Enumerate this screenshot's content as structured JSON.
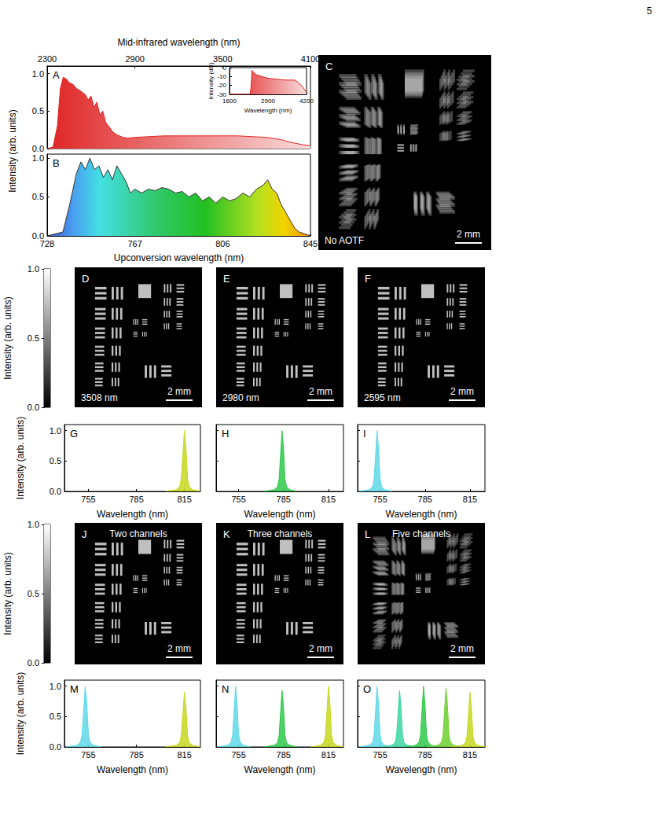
{
  "page_number": "5",
  "chart_data": [
    {
      "panel": "A",
      "type": "area",
      "color": "#e02424",
      "xlabel": "Mid-infrared wavelength (nm)",
      "ylabel": "Intensity (arb. units)",
      "x": [
        2300,
        2340,
        2370,
        2390,
        2410,
        2430,
        2450,
        2480,
        2500,
        2520,
        2540,
        2560,
        2580,
        2600,
        2620,
        2640,
        2660,
        2680,
        2700,
        2720,
        2750,
        2780,
        2820,
        2850,
        2900,
        3000,
        3100,
        3200,
        3300,
        3400,
        3500,
        3600,
        3700,
        3800,
        3900,
        3950,
        4000,
        4050,
        4100
      ],
      "values": [
        0,
        0.02,
        0.3,
        0.8,
        0.95,
        0.93,
        0.88,
        0.85,
        0.8,
        0.78,
        0.75,
        0.72,
        0.65,
        0.7,
        0.55,
        0.62,
        0.45,
        0.5,
        0.35,
        0.3,
        0.22,
        0.18,
        0.15,
        0.14,
        0.15,
        0.16,
        0.17,
        0.17,
        0.17,
        0.17,
        0.17,
        0.17,
        0.16,
        0.15,
        0.12,
        0.09,
        0.07,
        0.05,
        0.04
      ],
      "xlim": [
        2300,
        4100
      ],
      "xticks": [
        2300,
        2900,
        3500,
        4100
      ],
      "ylim": [
        0,
        1.1
      ],
      "yticks": [
        {
          "value": 0,
          "label": "0.0"
        },
        {
          "value": 0.5,
          "label": "0.5"
        },
        {
          "value": 1,
          "label": "1.0"
        }
      ],
      "inset": {
        "type": "area",
        "color": "#e02424",
        "xlabel": "Wavelength (nm)",
        "ylabel": "Intensity (dB)",
        "x": [
          1600,
          2300,
          2330,
          2360,
          2400,
          2500,
          2700,
          2900,
          3200,
          3500,
          3800,
          3900,
          4000,
          4100,
          4200
        ],
        "values": [
          -30,
          -30,
          -20,
          -3,
          -5,
          -8,
          -10,
          -12,
          -13,
          -14,
          -14,
          -16,
          -19,
          -23,
          -28
        ],
        "xlim": [
          1600,
          4200
        ],
        "xticks": [
          1600,
          2900,
          4200
        ],
        "ylim": [
          -30,
          0
        ],
        "yticks": [
          0,
          -10,
          -20,
          -30
        ]
      }
    },
    {
      "panel": "B",
      "type": "spectrum",
      "color": "#333333",
      "xlabel": "Upconversion wavelength (nm)",
      "x": [
        728,
        735,
        738,
        741,
        743,
        745,
        747,
        749,
        751,
        753,
        755,
        757,
        759,
        761,
        763,
        765,
        767,
        770,
        773,
        776,
        779,
        782,
        785,
        788,
        791,
        794,
        797,
        800,
        803,
        806,
        809,
        812,
        815,
        818,
        821,
        824,
        826,
        828,
        830,
        832,
        834,
        836,
        838,
        840,
        845
      ],
      "values": [
        0,
        0.05,
        0.4,
        0.8,
        0.95,
        0.85,
        1.0,
        0.85,
        0.9,
        0.75,
        0.85,
        0.72,
        0.9,
        0.8,
        0.7,
        0.55,
        0.6,
        0.55,
        0.6,
        0.58,
        0.62,
        0.6,
        0.55,
        0.57,
        0.5,
        0.55,
        0.45,
        0.5,
        0.42,
        0.5,
        0.45,
        0.48,
        0.55,
        0.5,
        0.6,
        0.65,
        0.72,
        0.6,
        0.55,
        0.4,
        0.3,
        0.2,
        0.1,
        0.05,
        0
      ],
      "xlim": [
        728,
        845
      ],
      "xticks": [
        728,
        767,
        806,
        845
      ],
      "ylim": [
        0,
        1.05
      ],
      "yticks": [
        {
          "value": 0,
          "label": "0.0"
        },
        {
          "value": 0.5,
          "label": "0.5"
        },
        {
          "value": 1,
          "label": "1.0"
        }
      ]
    },
    {
      "panel": "G",
      "type": "area",
      "xlabel": "Wavelength (nm)",
      "ylabel": "Intensity (arb. units)",
      "series": [
        {
          "color": "#c6d820",
          "x": [
            803,
            810,
            812,
            813,
            814,
            815,
            816,
            817,
            818,
            820,
            825
          ],
          "values": [
            0,
            0.03,
            0.08,
            0.2,
            0.6,
            1.0,
            0.7,
            0.2,
            0.08,
            0.03,
            0
          ]
        }
      ],
      "xlim": [
        740,
        825
      ],
      "xticks": [
        755,
        785,
        815
      ],
      "ylim": [
        0,
        1.1
      ],
      "yticks": [
        {
          "value": 0,
          "label": "0.0"
        },
        {
          "value": 0.5,
          "label": "0.5"
        },
        {
          "value": 1,
          "label": "1.0"
        }
      ]
    },
    {
      "panel": "H",
      "type": "area",
      "xlabel": "Wavelength (nm)",
      "tick_labels": "x",
      "series": [
        {
          "color": "#2ec84a",
          "x": [
            772,
            779,
            781,
            782,
            783,
            784,
            785,
            786,
            787,
            789,
            794
          ],
          "values": [
            0,
            0.03,
            0.08,
            0.2,
            0.6,
            1.0,
            0.7,
            0.2,
            0.08,
            0.03,
            0
          ]
        }
      ],
      "xlim": [
        740,
        825
      ],
      "xticks": [
        755,
        785,
        815
      ],
      "ylim": [
        0,
        1.1
      ],
      "yticks": [
        {
          "value": 0,
          "label": "0.0"
        },
        {
          "value": 0.5,
          "label": "0.5"
        },
        {
          "value": 1,
          "label": "1.0"
        }
      ]
    },
    {
      "panel": "I",
      "type": "area",
      "xlabel": "Wavelength (nm)",
      "tick_labels": "x",
      "series": [
        {
          "color": "#5fd8e8",
          "x": [
            741,
            748,
            750,
            751,
            752,
            753,
            754,
            755,
            756,
            758,
            763
          ],
          "values": [
            0,
            0.03,
            0.08,
            0.2,
            0.6,
            1.0,
            0.7,
            0.2,
            0.08,
            0.03,
            0
          ]
        }
      ],
      "xlim": [
        740,
        825
      ],
      "xticks": [
        755,
        785,
        815
      ],
      "ylim": [
        0,
        1.1
      ],
      "yticks": [
        {
          "value": 0,
          "label": "0.0"
        },
        {
          "value": 0.5,
          "label": "0.5"
        },
        {
          "value": 1,
          "label": "1.0"
        }
      ]
    },
    {
      "panel": "M",
      "type": "area",
      "xlabel": "Wavelength (nm)",
      "ylabel": "Intensity (arb. units)",
      "series": [
        {
          "color": "#5fd8e8",
          "x": [
            741,
            748,
            750,
            751,
            752,
            753,
            754,
            755,
            756,
            758,
            763
          ],
          "values": [
            0,
            0.03,
            0.08,
            0.2,
            0.6,
            1.0,
            0.7,
            0.2,
            0.08,
            0.03,
            0
          ]
        },
        {
          "color": "#c6d820",
          "x": [
            803,
            810,
            812,
            813,
            814,
            815,
            816,
            817,
            818,
            820,
            825
          ],
          "values": [
            0,
            0.03,
            0.07,
            0.18,
            0.54,
            0.9,
            0.63,
            0.18,
            0.07,
            0.03,
            0
          ]
        }
      ],
      "xlim": [
        740,
        825
      ],
      "xticks": [
        755,
        785,
        815
      ],
      "ylim": [
        0,
        1.1
      ],
      "yticks": [
        {
          "value": 0,
          "label": "0.0"
        },
        {
          "value": 0.5,
          "label": "0.5"
        },
        {
          "value": 1,
          "label": "1.0"
        }
      ]
    },
    {
      "panel": "N",
      "type": "area",
      "xlabel": "Wavelength (nm)",
      "tick_labels": "x",
      "series": [
        {
          "color": "#5fd8e8",
          "x": [
            741,
            748,
            750,
            751,
            752,
            753,
            754,
            755,
            756,
            758,
            763
          ],
          "values": [
            0,
            0.03,
            0.08,
            0.2,
            0.6,
            1.0,
            0.7,
            0.2,
            0.08,
            0.03,
            0
          ]
        },
        {
          "color": "#2ec84a",
          "x": [
            772,
            779,
            781,
            782,
            783,
            784,
            785,
            786,
            787,
            789,
            794
          ],
          "values": [
            0,
            0.03,
            0.07,
            0.19,
            0.56,
            0.93,
            0.65,
            0.19,
            0.07,
            0.03,
            0
          ]
        },
        {
          "color": "#c6d820",
          "x": [
            803,
            810,
            812,
            813,
            814,
            815,
            816,
            817,
            818,
            820,
            825
          ],
          "values": [
            0,
            0.03,
            0.08,
            0.2,
            0.6,
            1.0,
            0.7,
            0.2,
            0.08,
            0.03,
            0
          ]
        }
      ],
      "xlim": [
        740,
        825
      ],
      "xticks": [
        755,
        785,
        815
      ],
      "ylim": [
        0,
        1.1
      ],
      "yticks": [
        {
          "value": 0,
          "label": "0.0"
        },
        {
          "value": 0.5,
          "label": "0.5"
        },
        {
          "value": 1,
          "label": "1.0"
        }
      ]
    },
    {
      "panel": "O",
      "type": "area",
      "xlabel": "Wavelength (nm)",
      "tick_labels": "x",
      "series": [
        {
          "color": "#5fd8e8",
          "x": [
            741,
            748,
            750,
            751,
            752,
            753,
            754,
            755,
            756,
            758,
            763
          ],
          "values": [
            0,
            0.03,
            0.08,
            0.2,
            0.6,
            1.0,
            0.7,
            0.2,
            0.08,
            0.03,
            0
          ]
        },
        {
          "color": "#3cd6a0",
          "x": [
            756,
            763,
            765,
            766,
            767,
            768,
            769,
            770,
            771,
            773,
            778
          ],
          "values": [
            0,
            0.03,
            0.07,
            0.19,
            0.56,
            0.93,
            0.65,
            0.19,
            0.07,
            0.03,
            0
          ]
        },
        {
          "color": "#2ec84a",
          "x": [
            772,
            779,
            781,
            782,
            783,
            784,
            785,
            786,
            787,
            789,
            794
          ],
          "values": [
            0,
            0.03,
            0.08,
            0.2,
            0.6,
            1.0,
            0.7,
            0.2,
            0.08,
            0.03,
            0
          ]
        },
        {
          "color": "#6cd030",
          "x": [
            787,
            794,
            796,
            797,
            798,
            799,
            800,
            801,
            802,
            804,
            809
          ],
          "values": [
            0,
            0.03,
            0.08,
            0.19,
            0.58,
            0.97,
            0.68,
            0.19,
            0.08,
            0.03,
            0
          ]
        },
        {
          "color": "#c6d820",
          "x": [
            803,
            810,
            812,
            813,
            814,
            815,
            816,
            817,
            818,
            820,
            825
          ],
          "values": [
            0,
            0.03,
            0.07,
            0.18,
            0.54,
            0.9,
            0.63,
            0.18,
            0.07,
            0.03,
            0
          ]
        }
      ],
      "xlim": [
        740,
        825
      ],
      "xticks": [
        755,
        785,
        815
      ],
      "ylim": [
        0,
        1.1
      ],
      "yticks": [
        {
          "value": 0,
          "label": "0.0"
        },
        {
          "value": 0.5,
          "label": "0.5"
        },
        {
          "value": 1,
          "label": "1.0"
        }
      ]
    }
  ],
  "images": [
    {
      "panel": "C",
      "label": "No AOTF",
      "scale_bar": "2 mm"
    },
    {
      "panel": "D",
      "label": "3508 nm",
      "scale_bar": "2 mm"
    },
    {
      "panel": "E",
      "label": "2980 nm",
      "scale_bar": "2 mm"
    },
    {
      "panel": "F",
      "label": "2595 nm",
      "scale_bar": "2 mm"
    },
    {
      "panel": "J",
      "label": "Two channels",
      "scale_bar": "2 mm"
    },
    {
      "panel": "K",
      "label": "Three channels",
      "scale_bar": "2 mm"
    },
    {
      "panel": "L",
      "label": "Five channels",
      "scale_bar": "2 mm"
    }
  ],
  "colorbars": [
    {
      "label": "Intensity (arb. units)",
      "ylim": [
        0,
        1
      ],
      "yticks": [
        {
          "value": 0,
          "label": "0.0"
        },
        {
          "value": 0.5,
          "label": "0.5"
        },
        {
          "value": 1,
          "label": "1.0"
        }
      ]
    },
    {
      "label": "Intensity (arb. units)",
      "ylim": [
        0,
        1
      ],
      "yticks": [
        {
          "value": 0,
          "label": "0.0"
        },
        {
          "value": 0.5,
          "label": "0.5"
        },
        {
          "value": 1,
          "label": "1.0"
        }
      ]
    }
  ]
}
